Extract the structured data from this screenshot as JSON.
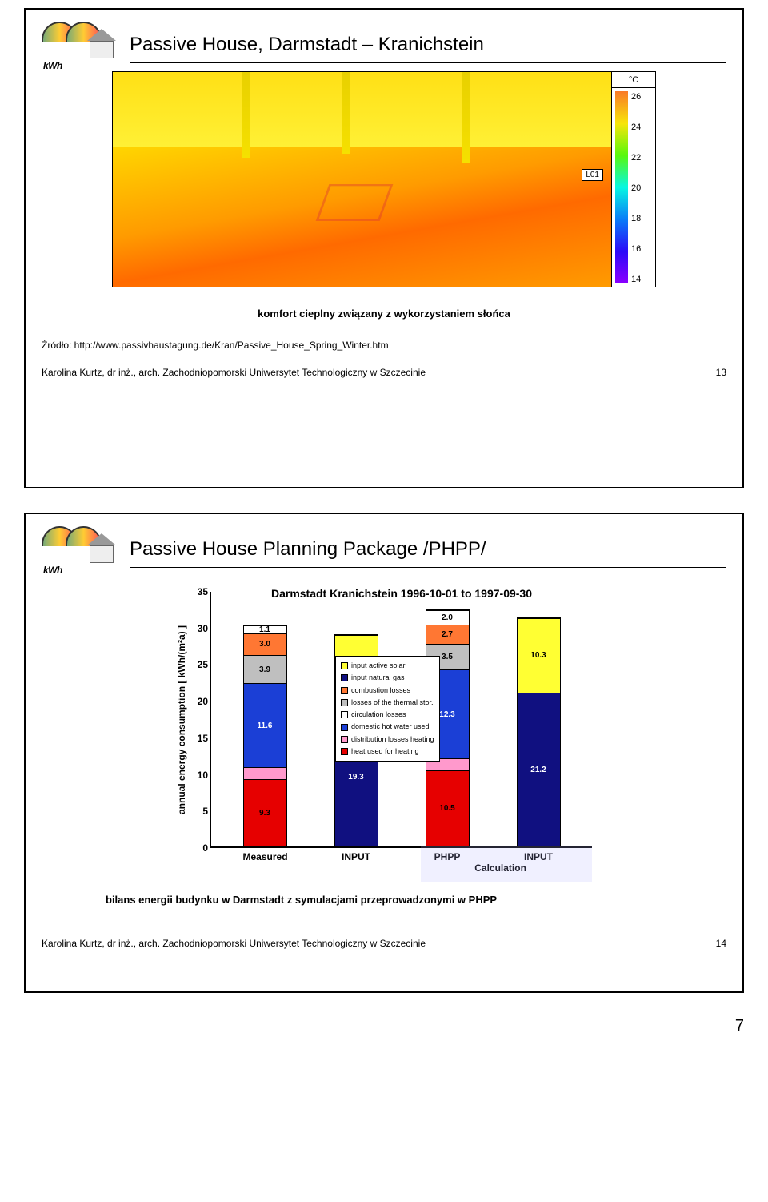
{
  "logo": {
    "kwh": "kWh"
  },
  "slide1": {
    "title": "Passive House, Darmstadt – Kranichstein",
    "caption": "komfort cieplny związany z wykorzystaniem słońca",
    "source": "Źródło: http://www.passivhaustagung.de/Kran/Passive_House_Spring_Winter.htm",
    "footer": "Karolina Kurtz, dr inż., arch. Zachodniopomorski Uniwersytet Technologiczny w Szczecinie",
    "pagenum": "13",
    "thermal": {
      "unit": "°C",
      "ticks": [
        26,
        24,
        22,
        20,
        18,
        16,
        14
      ],
      "colors": [
        "#f97a28",
        "#f8e509",
        "#58f80c",
        "#07f7e2",
        "#0a7cf8",
        "#2b0af8",
        "#8b00ff"
      ],
      "tag": "L01",
      "sky_gradient": "linear-gradient(#ffe015 0%, #fff23a 100%)",
      "ground_gradient": "linear-gradient(170deg, #ffd500 0%, #ff9b00 40%, #ff6a00 60%, #ff9b00 100%)"
    }
  },
  "slide2": {
    "title": "Passive House Planning Package /PHPP/",
    "chart": {
      "supertitle": "Darmstadt Kranichstein 1996-10-01 to 1997-09-30",
      "ylabel": "annual energy consumption  [ kWh/(m²a) ]",
      "ymax": 35,
      "yticks": [
        0,
        5,
        10,
        15,
        20,
        25,
        30,
        35
      ],
      "categories": [
        "Measured",
        "INPUT",
        "PHPP",
        "INPUT"
      ],
      "x_sublabel": "Calculation",
      "colors": {
        "input_active_solar": "#ffff33",
        "input_natural_gas": "#101080",
        "combustion_losses": "#ff7733",
        "losses_thermal_stor": "#bfbfbf",
        "circulation_losses": "#ffffff",
        "domestic_hot_water": "#1b3fd6",
        "distribution_losses_heating": "#ff99cc",
        "heat_used_heating": "#e60000"
      },
      "bars": [
        {
          "segments": [
            {
              "key": "heat_used_heating",
              "v": 9.3
            },
            {
              "key": "distribution_losses_heating",
              "v": 1.6,
              "label": ""
            },
            {
              "key": "domestic_hot_water",
              "v": 11.6
            },
            {
              "key": "losses_thermal_stor",
              "v": 3.9
            },
            {
              "key": "combustion_losses",
              "v": 3.0,
              "label": "3.0"
            },
            {
              "key": "circulation_losses",
              "v": 1.1,
              "label": "1.1"
            }
          ]
        },
        {
          "segments": [
            {
              "key": "input_natural_gas",
              "v": 19.3
            },
            {
              "key": "input_active_solar",
              "v": 9.9
            }
          ]
        },
        {
          "segments": [
            {
              "key": "heat_used_heating",
              "v": 10.5
            },
            {
              "key": "distribution_losses_heating",
              "v": 1.6,
              "label": ""
            },
            {
              "key": "domestic_hot_water",
              "v": 12.3
            },
            {
              "key": "losses_thermal_stor",
              "v": 3.5
            },
            {
              "key": "combustion_losses",
              "v": 2.7,
              "label": "2.7"
            },
            {
              "key": "circulation_losses",
              "v": 2.0,
              "label": "2.0"
            }
          ]
        },
        {
          "segments": [
            {
              "key": "input_natural_gas",
              "v": 21.2
            },
            {
              "key": "input_active_solar",
              "v": 10.3
            }
          ]
        }
      ],
      "legend": [
        {
          "key": "input_active_solar",
          "label": "input active solar"
        },
        {
          "key": "input_natural_gas",
          "label": "input natural gas"
        },
        {
          "key": "combustion_losses",
          "label": "combustion losses"
        },
        {
          "key": "losses_thermal_stor",
          "label": "losses of the thermal stor."
        },
        {
          "key": "circulation_losses",
          "label": "circulation losses"
        },
        {
          "key": "domestic_hot_water",
          "label": "domestic hot water used"
        },
        {
          "key": "distribution_losses_heating",
          "label": "distribution losses heating"
        },
        {
          "key": "heat_used_heating",
          "label": "heat used for heating"
        }
      ]
    },
    "caption": "bilans energii budynku w Darmstadt z symulacjami przeprowadzonymi w PHPP",
    "footer": "Karolina Kurtz, dr inż., arch. Zachodniopomorski Uniwersytet Technologiczny w Szczecinie",
    "pagenum": "14"
  },
  "sheet_page": "7"
}
